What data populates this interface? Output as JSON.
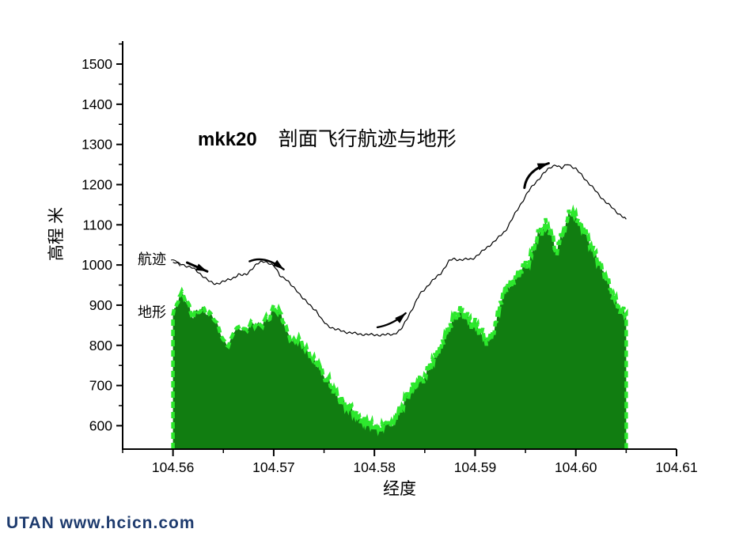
{
  "page": {
    "background": "#ffffff"
  },
  "watermark": {
    "text": "UTAN  www.hcicn.com",
    "color": "#1e3b6e"
  },
  "chart_data": {
    "type": "area",
    "title_main": "mkk20",
    "title_sub": "剖面飞行航迹与地形",
    "xlabel": "经度",
    "ylabel": "高程 米",
    "axis_color": "#000000",
    "x_axis": {
      "min": 104.555,
      "max": 104.61,
      "major_ticks": [
        {
          "label": "104.56",
          "value": 104.56
        },
        {
          "label": "104.57",
          "value": 104.57
        },
        {
          "label": "104.58",
          "value": 104.58
        },
        {
          "label": "104.59",
          "value": 104.59
        },
        {
          "label": "104.60",
          "value": 104.6
        },
        {
          "label": "104.61",
          "value": 104.61
        }
      ],
      "minor_ticks": [
        104.555,
        104.565,
        104.575,
        104.585,
        104.595,
        104.605
      ]
    },
    "y_axis": {
      "min": 540,
      "max": 1560,
      "major_ticks": [
        {
          "label": "600",
          "value": 600
        },
        {
          "label": "700",
          "value": 700
        },
        {
          "label": "800",
          "value": 800
        },
        {
          "label": "900",
          "value": 900
        },
        {
          "label": "1000",
          "value": 1000
        },
        {
          "label": "1100",
          "value": 1100
        },
        {
          "label": "1200",
          "value": 1200
        },
        {
          "label": "1300",
          "value": 1300
        },
        {
          "label": "1400",
          "value": 1400
        },
        {
          "label": "1500",
          "value": 1500
        }
      ],
      "minor_ticks": [
        650,
        750,
        850,
        950,
        1050,
        1150,
        1250,
        1350,
        1450,
        1550
      ]
    },
    "series": [
      {
        "name": "地形",
        "type": "area",
        "fill": "#117d11",
        "edge_color": "#2de82d",
        "points": [
          [
            104.56,
            875
          ],
          [
            104.5605,
            915
          ],
          [
            104.561,
            930
          ],
          [
            104.5615,
            900
          ],
          [
            104.562,
            872
          ],
          [
            104.5625,
            888
          ],
          [
            104.563,
            890
          ],
          [
            104.5635,
            878
          ],
          [
            104.564,
            872
          ],
          [
            104.5645,
            845
          ],
          [
            104.565,
            812
          ],
          [
            104.5655,
            798
          ],
          [
            104.566,
            832
          ],
          [
            104.5665,
            845
          ],
          [
            104.567,
            836
          ],
          [
            104.5675,
            846
          ],
          [
            104.568,
            856
          ],
          [
            104.5685,
            849
          ],
          [
            104.569,
            858
          ],
          [
            104.5695,
            868
          ],
          [
            104.57,
            893
          ],
          [
            104.5705,
            886
          ],
          [
            104.571,
            858
          ],
          [
            104.5715,
            822
          ],
          [
            104.572,
            810
          ],
          [
            104.5725,
            816
          ],
          [
            104.573,
            797
          ],
          [
            104.5735,
            781
          ],
          [
            104.574,
            762
          ],
          [
            104.5745,
            752
          ],
          [
            104.575,
            724
          ],
          [
            104.5755,
            710
          ],
          [
            104.576,
            686
          ],
          [
            104.5765,
            668
          ],
          [
            104.577,
            655
          ],
          [
            104.5775,
            648
          ],
          [
            104.578,
            636
          ],
          [
            104.5785,
            618
          ],
          [
            104.579,
            612
          ],
          [
            104.5795,
            607
          ],
          [
            104.58,
            598
          ],
          [
            104.5805,
            596
          ],
          [
            104.581,
            600
          ],
          [
            104.5813,
            614
          ],
          [
            104.5817,
            600
          ],
          [
            104.582,
            616
          ],
          [
            104.5825,
            640
          ],
          [
            104.583,
            660
          ],
          [
            104.5835,
            686
          ],
          [
            104.584,
            700
          ],
          [
            104.5845,
            712
          ],
          [
            104.585,
            722
          ],
          [
            104.5855,
            748
          ],
          [
            104.586,
            770
          ],
          [
            104.5865,
            792
          ],
          [
            104.587,
            820
          ],
          [
            104.5875,
            850
          ],
          [
            104.588,
            872
          ],
          [
            104.5885,
            885
          ],
          [
            104.589,
            878
          ],
          [
            104.5895,
            858
          ],
          [
            104.59,
            852
          ],
          [
            104.5905,
            838
          ],
          [
            104.591,
            816
          ],
          [
            104.5915,
            813
          ],
          [
            104.592,
            850
          ],
          [
            104.5925,
            905
          ],
          [
            104.593,
            940
          ],
          [
            104.5935,
            952
          ],
          [
            104.594,
            965
          ],
          [
            104.5945,
            985
          ],
          [
            104.595,
            1000
          ],
          [
            104.5955,
            1016
          ],
          [
            104.596,
            1060
          ],
          [
            104.5965,
            1086
          ],
          [
            104.597,
            1100
          ],
          [
            104.5975,
            1088
          ],
          [
            104.598,
            1030
          ],
          [
            104.5985,
            1065
          ],
          [
            104.599,
            1096
          ],
          [
            104.5993,
            1135
          ],
          [
            104.5996,
            1128
          ],
          [
            104.6,
            1120
          ],
          [
            104.6005,
            1100
          ],
          [
            104.601,
            1080
          ],
          [
            104.6015,
            1046
          ],
          [
            104.602,
            1026
          ],
          [
            104.6025,
            996
          ],
          [
            104.603,
            968
          ],
          [
            104.6035,
            936
          ],
          [
            104.604,
            906
          ],
          [
            104.6045,
            888
          ],
          [
            104.605,
            878
          ]
        ]
      },
      {
        "name": "航迹",
        "type": "line",
        "color": "#000000",
        "points": [
          [
            104.56,
            1007
          ],
          [
            104.5611,
            1000
          ],
          [
            104.5619,
            993
          ],
          [
            104.5624,
            984
          ],
          [
            104.5631,
            970
          ],
          [
            104.5637,
            957
          ],
          [
            104.5642,
            953
          ],
          [
            104.5648,
            957
          ],
          [
            104.5653,
            961
          ],
          [
            104.5659,
            967
          ],
          [
            104.5665,
            976
          ],
          [
            104.5669,
            974
          ],
          [
            104.5673,
            977
          ],
          [
            104.5678,
            990
          ],
          [
            104.5683,
            1001
          ],
          [
            104.5687,
            1007
          ],
          [
            104.5691,
            1010
          ],
          [
            104.5695,
            1005
          ],
          [
            104.5701,
            995
          ],
          [
            104.5706,
            975
          ],
          [
            104.5712,
            965
          ],
          [
            104.5717,
            950
          ],
          [
            104.5723,
            937
          ],
          [
            104.5729,
            917
          ],
          [
            104.5735,
            902
          ],
          [
            104.5742,
            887
          ],
          [
            104.5748,
            862
          ],
          [
            104.5754,
            849
          ],
          [
            104.5761,
            840
          ],
          [
            104.5774,
            832
          ],
          [
            104.5782,
            829
          ],
          [
            104.5791,
            827
          ],
          [
            104.58,
            826
          ],
          [
            104.581,
            826
          ],
          [
            104.5819,
            828
          ],
          [
            104.5826,
            838
          ],
          [
            104.5829,
            850
          ],
          [
            104.5834,
            875
          ],
          [
            104.5839,
            897
          ],
          [
            104.5845,
            927
          ],
          [
            104.5855,
            954
          ],
          [
            104.5866,
            980
          ],
          [
            104.5874,
            1009
          ],
          [
            104.5878,
            1015
          ],
          [
            104.5886,
            1013
          ],
          [
            104.5897,
            1015
          ],
          [
            104.5905,
            1029
          ],
          [
            104.5913,
            1046
          ],
          [
            104.5922,
            1065
          ],
          [
            104.593,
            1085
          ],
          [
            104.5938,
            1120
          ],
          [
            104.5945,
            1150
          ],
          [
            104.5952,
            1180
          ],
          [
            104.596,
            1205
          ],
          [
            104.5968,
            1228
          ],
          [
            104.5975,
            1243
          ],
          [
            104.598,
            1250
          ],
          [
            104.5986,
            1240
          ],
          [
            104.5992,
            1252
          ],
          [
            104.6,
            1239
          ],
          [
            104.6007,
            1220
          ],
          [
            104.6015,
            1198
          ],
          [
            104.6023,
            1174
          ],
          [
            104.6031,
            1154
          ],
          [
            104.604,
            1133
          ],
          [
            104.605,
            1114
          ]
        ]
      }
    ],
    "annotations": {
      "series_labels": [
        {
          "text": "航迹",
          "target": "flight-track"
        },
        {
          "text": "地形",
          "target": "terrain"
        }
      ],
      "leader": {
        "from": [
          104.5598,
          1012
        ],
        "to": [
          104.5607,
          997
        ]
      },
      "arrows": [
        {
          "points": [
            [
              104.5614,
              1006
            ],
            [
              104.5634,
              984
            ]
          ],
          "width": 3
        },
        {
          "points": [
            [
              104.5676,
              1009
            ],
            [
              104.5691,
              1025
            ],
            [
              104.571,
              989
            ]
          ],
          "width": 2.4
        },
        {
          "points": [
            [
              104.5803,
              845
            ],
            [
              104.5818,
              851
            ],
            [
              104.5831,
              880
            ]
          ],
          "width": 2.4
        },
        {
          "points": [
            [
              104.5949,
              1192
            ],
            [
              104.5951,
              1235
            ],
            [
              104.5973,
              1253
            ]
          ],
          "width": 3
        }
      ]
    }
  }
}
